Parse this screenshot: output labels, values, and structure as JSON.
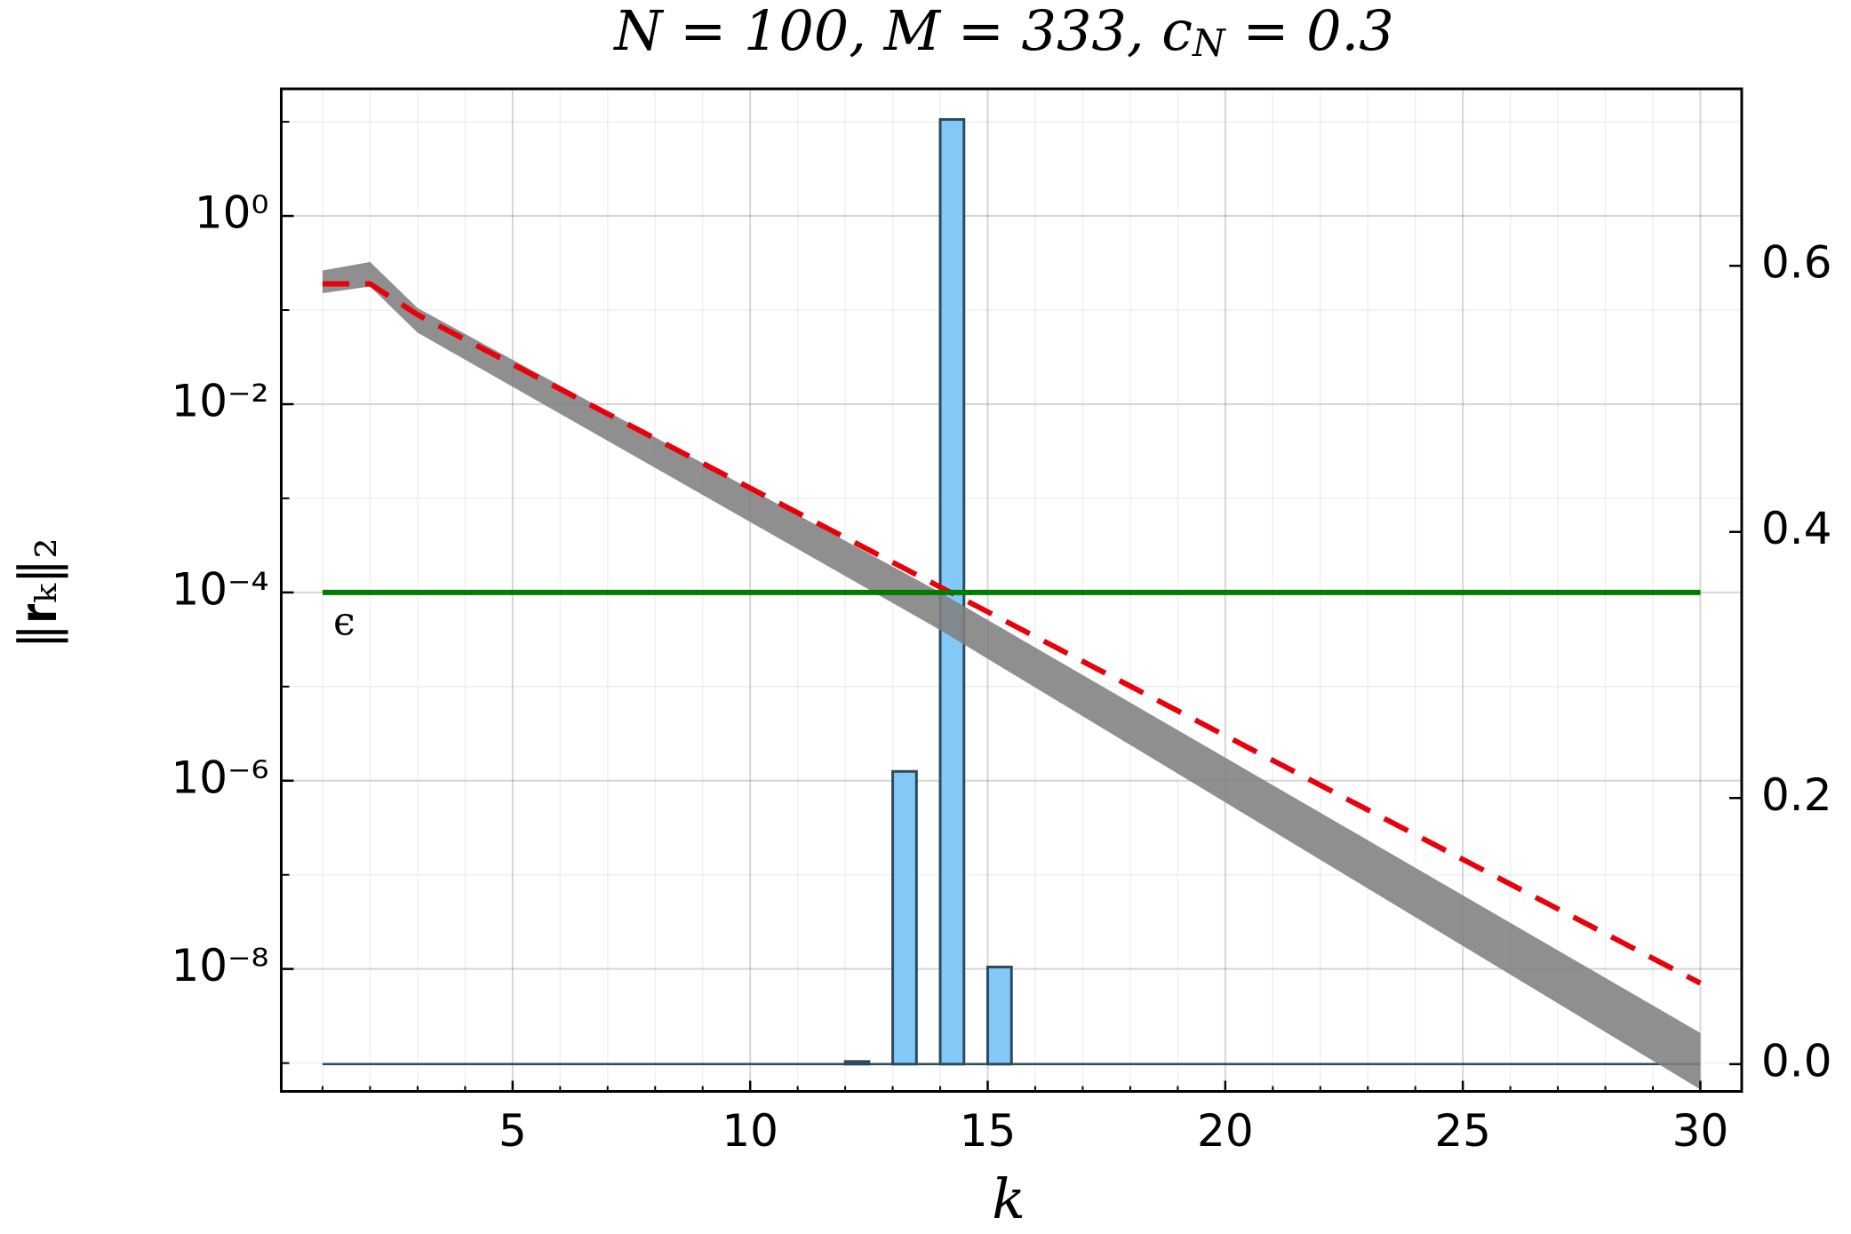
{
  "chart_data": {
    "type": "line",
    "title": {
      "text": "N = 100, M = 333, c",
      "subscript": "N",
      "tail": " = 0.3"
    },
    "xlabel": "k",
    "ylabel": "‖𝐫ₖ‖₂",
    "xlim": [
      0.13,
      30.87
    ],
    "xticks": [
      5,
      10,
      15,
      20,
      25,
      30
    ],
    "xminorticks": [
      1,
      2,
      3,
      4,
      6,
      7,
      8,
      9,
      11,
      12,
      13,
      14,
      16,
      17,
      18,
      19,
      21,
      22,
      23,
      24,
      26,
      27,
      28,
      29
    ],
    "ylim": [
      5e-10,
      22.4
    ],
    "yscale": "log",
    "yticks": [
      {
        "value": 1,
        "label": "10⁰"
      },
      {
        "value": 0.01,
        "label": "10⁻²"
      },
      {
        "value": 0.0001,
        "label": "10⁻⁴"
      },
      {
        "value": 1e-06,
        "label": "10⁻⁶"
      },
      {
        "value": 1e-08,
        "label": "10⁻⁸"
      }
    ],
    "yminorticks": [
      10,
      0.1,
      0.001,
      1e-05,
      1e-07,
      1e-09
    ],
    "y2lim": [
      -0.0205,
      0.733
    ],
    "y2ticks": [
      {
        "value": 0,
        "label": "0.0"
      },
      0.2,
      0.4,
      0.6
    ],
    "grid": true,
    "band": {
      "color": "#808080",
      "x": [
        1,
        2,
        3,
        14,
        30
      ],
      "upper": [
        0.263,
        0.324,
        0.105,
        0.0001,
        2.09e-09
      ],
      "lower": [
        0.151,
        0.178,
        0.0575,
        3.98e-05,
        5.25e-10
      ]
    },
    "series": [
      {
        "color": "#e8000b",
        "x": [
          1,
          2,
          3,
          30
        ],
        "values": [
          0.19,
          0.19,
          0.0891,
          7.06e-09
        ]
      }
    ],
    "threshold": {
      "value": 0.0001,
      "label": "ϵ",
      "color": "#007d00",
      "x": [
        1,
        30
      ]
    },
    "histogram": {
      "axis": "y2",
      "color": "#82c9f7",
      "edgecolor": "#2e4a5e",
      "bins": [
        12,
        12.5,
        13,
        13.5,
        14,
        14.5,
        15,
        15.5
      ],
      "counts": [
        0.002,
        0,
        0.22,
        0,
        0.71,
        0,
        0.073
      ]
    }
  }
}
